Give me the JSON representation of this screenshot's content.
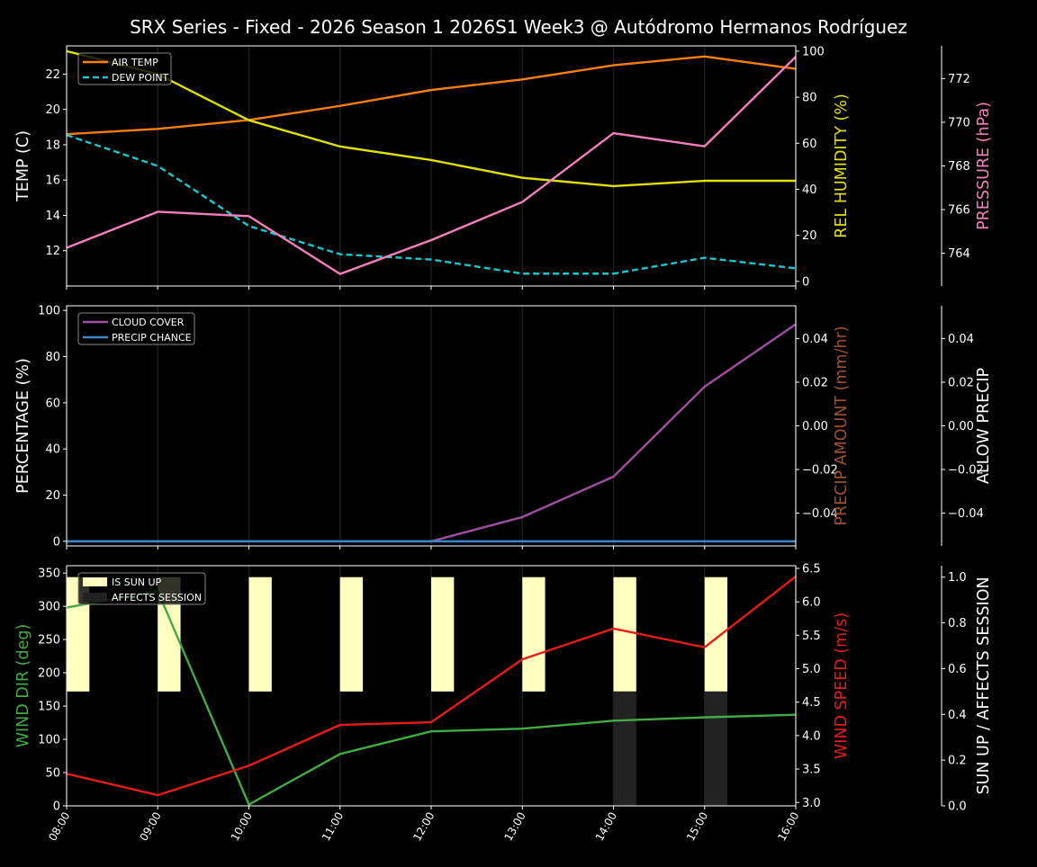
{
  "title": "SRX Series - Fixed - 2026 Season 1 2026S1 Week3 @ Autódromo Hermanos Rodríguez",
  "chart_data": [
    {
      "type": "line",
      "x": [
        "08:00",
        "09:00",
        "10:00",
        "11:00",
        "12:00",
        "13:00",
        "14:00",
        "15:00",
        "16:00"
      ],
      "grid": "vertical",
      "legend_placement": "top-left",
      "axes": [
        {
          "side": "left",
          "label": "TEMP (C)",
          "color": "#ffffff",
          "ylim": [
            10.0,
            23.6
          ],
          "ticks": [
            "12",
            "14",
            "16",
            "18",
            "20",
            "22"
          ]
        },
        {
          "side": "right",
          "label": "REL HUMIDITY (%)",
          "color": "#e0e000",
          "ylim": [
            -2,
            102.3
          ],
          "ticks": [
            "0",
            "20",
            "40",
            "60",
            "80",
            "100"
          ]
        },
        {
          "side": "right-outer",
          "label": "PRESSURE (hPa)",
          "color": "#f47fbd",
          "ylim": [
            762.5,
            773.5
          ],
          "ticks": [
            "764",
            "766",
            "768",
            "770",
            "772"
          ]
        }
      ],
      "series": [
        {
          "name": "AIR TEMP",
          "axis": 0,
          "color": "#ff7f0e",
          "style": "solid",
          "legend": true,
          "values": [
            18.6,
            18.9,
            19.4,
            20.2,
            21.1,
            21.7,
            22.5,
            23.0,
            22.3
          ]
        },
        {
          "name": "DEW POINT",
          "axis": 0,
          "color": "#17c8d0",
          "style": "dashed",
          "legend": true,
          "values": [
            18.55,
            16.8,
            13.4,
            11.8,
            11.5,
            10.7,
            10.7,
            11.6,
            11.0
          ]
        },
        {
          "axis": 1,
          "color": "#e0e000",
          "style": "solid",
          "legend": false,
          "values": [
            100,
            90,
            70,
            58.6,
            52.7,
            45,
            41.4,
            43.7,
            43.7
          ]
        },
        {
          "axis": 2,
          "color": "#f47fbd",
          "style": "solid",
          "legend": false,
          "values": [
            764.25,
            765.9,
            765.7,
            763.05,
            764.6,
            766.35,
            769.5,
            768.9,
            773.0
          ]
        }
      ]
    },
    {
      "type": "line",
      "x": [
        "08:00",
        "09:00",
        "10:00",
        "11:00",
        "12:00",
        "13:00",
        "14:00",
        "15:00",
        "16:00"
      ],
      "grid": "vertical",
      "legend_placement": "top-left",
      "axes": [
        {
          "side": "left",
          "label": "PERCENTAGE (%)",
          "color": "#ffffff",
          "ylim": [
            -2,
            102
          ],
          "ticks": [
            "0",
            "20",
            "40",
            "60",
            "80",
            "100"
          ]
        },
        {
          "side": "right",
          "label": "PRECIP AMOUNT (mm/hr)",
          "color": "#a0522d",
          "ylim": [
            -0.055,
            0.055
          ],
          "ticks": [
            "−0.04",
            "−0.02",
            "0.00",
            "0.02",
            "0.04"
          ]
        },
        {
          "side": "right-outer",
          "label": "ALLOW PRECIP",
          "color": "#ffffff",
          "ylim": [
            -0.055,
            0.055
          ],
          "ticks": [
            "−0.04",
            "−0.02",
            "0.00",
            "0.02",
            "0.04"
          ]
        }
      ],
      "series": [
        {
          "name": "CLOUD COVER",
          "axis": 0,
          "color": "#a04ea0",
          "style": "solid",
          "legend": true,
          "values": [
            0,
            0,
            0,
            0,
            0,
            10.5,
            28,
            67,
            94
          ]
        },
        {
          "name": "PRECIP CHANCE",
          "axis": 0,
          "color": "#3a86c8",
          "style": "solid",
          "legend": true,
          "values": [
            0,
            0,
            0,
            0,
            0,
            0,
            0,
            0,
            0
          ]
        }
      ]
    },
    {
      "type": "line",
      "x": [
        "08:00",
        "09:00",
        "10:00",
        "11:00",
        "12:00",
        "13:00",
        "14:00",
        "15:00",
        "16:00"
      ],
      "grid": "vertical",
      "legend_placement": "top-left",
      "axes": [
        {
          "side": "left",
          "label": "WIND DIR (deg)",
          "color": "#44aa44",
          "ylim": [
            0,
            361
          ],
          "ticks": [
            "0",
            "50",
            "100",
            "150",
            "200",
            "250",
            "300",
            "350"
          ]
        },
        {
          "side": "right",
          "label": "WIND SPEED (m/s)",
          "color": "#e81a1a",
          "ylim": [
            2.95,
            6.54
          ],
          "ticks": [
            "3.0",
            "3.5",
            "4.0",
            "4.5",
            "5.0",
            "5.5",
            "6.0",
            "6.5"
          ]
        },
        {
          "side": "right-outer",
          "label": "SUN UP / AFFECTS SESSION",
          "color": "#ffffff",
          "ylim": [
            0,
            1.05
          ],
          "ticks": [
            "0.0",
            "0.2",
            "0.4",
            "0.6",
            "0.8",
            "1.0"
          ]
        }
      ],
      "bars": [
        {
          "name": "IS SUN UP",
          "axis": 2,
          "color": "#ffffc0",
          "bottom": 0.5,
          "values": [
            0.5,
            0.5,
            0.5,
            0.5,
            0.5,
            0.5,
            0.5,
            0.5,
            0
          ]
        },
        {
          "name": "AFFECTS SESSION",
          "axis": 2,
          "color": "#222222",
          "bottom": 0,
          "values": [
            0,
            0,
            0,
            0,
            0,
            0,
            0.5,
            0.5,
            0
          ]
        }
      ],
      "series": [
        {
          "axis": 0,
          "color": "#44aa44",
          "style": "solid",
          "legend": false,
          "values": [
            298,
            323,
            2,
            78,
            112,
            116,
            128,
            133,
            137
          ]
        },
        {
          "axis": 1,
          "color": "#e81a1a",
          "style": "solid",
          "legend": false,
          "values": [
            3.43,
            3.11,
            3.55,
            4.16,
            4.2,
            5.14,
            5.6,
            5.32,
            6.38
          ]
        }
      ]
    }
  ]
}
